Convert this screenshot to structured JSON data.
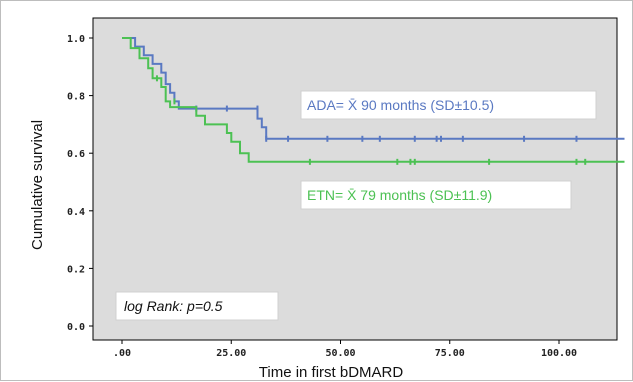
{
  "chart_data": {
    "type": "line",
    "subtype": "kaplan-meier",
    "xlabel": "Time in first bDMARD",
    "ylabel": "Cumulative survival",
    "xlim": [
      0,
      115
    ],
    "ylim": [
      0,
      1.0
    ],
    "x_ticks": [
      ".00",
      "25.00",
      "50.00",
      "75.00",
      "100.00"
    ],
    "y_ticks": [
      "0.0",
      "0.2",
      "0.4",
      "0.6",
      "0.8",
      "1.0"
    ],
    "grid": false,
    "background": "#dcdcdc",
    "series": [
      {
        "name": "ADA",
        "color": "#5a79c2",
        "steps": [
          [
            0,
            1.0
          ],
          [
            3,
            1.0
          ],
          [
            3,
            0.97
          ],
          [
            5,
            0.97
          ],
          [
            5,
            0.94
          ],
          [
            7,
            0.94
          ],
          [
            7,
            0.91
          ],
          [
            9,
            0.91
          ],
          [
            9,
            0.88
          ],
          [
            10,
            0.88
          ],
          [
            10,
            0.84
          ],
          [
            11,
            0.84
          ],
          [
            11,
            0.81
          ],
          [
            12,
            0.81
          ],
          [
            12,
            0.78
          ],
          [
            13,
            0.78
          ],
          [
            13,
            0.755
          ],
          [
            31,
            0.755
          ],
          [
            31,
            0.72
          ],
          [
            32,
            0.72
          ],
          [
            32,
            0.69
          ],
          [
            33,
            0.69
          ],
          [
            33,
            0.65
          ],
          [
            115,
            0.65
          ]
        ],
        "censored": [
          [
            17,
            0.755
          ],
          [
            24,
            0.755
          ],
          [
            31,
            0.755
          ],
          [
            33,
            0.65
          ],
          [
            38,
            0.65
          ],
          [
            47,
            0.65
          ],
          [
            55,
            0.65
          ],
          [
            59,
            0.65
          ],
          [
            67,
            0.65
          ],
          [
            72,
            0.65
          ],
          [
            73,
            0.65
          ],
          [
            78,
            0.65
          ],
          [
            92,
            0.65
          ],
          [
            104,
            0.65
          ]
        ]
      },
      {
        "name": "ETN",
        "color": "#4cc153",
        "steps": [
          [
            0,
            1.0
          ],
          [
            2,
            1.0
          ],
          [
            2,
            0.965
          ],
          [
            4,
            0.965
          ],
          [
            4,
            0.93
          ],
          [
            6,
            0.93
          ],
          [
            6,
            0.895
          ],
          [
            7,
            0.895
          ],
          [
            7,
            0.86
          ],
          [
            9,
            0.86
          ],
          [
            9,
            0.83
          ],
          [
            10,
            0.83
          ],
          [
            10,
            0.78
          ],
          [
            11,
            0.78
          ],
          [
            11,
            0.76
          ],
          [
            17,
            0.76
          ],
          [
            17,
            0.73
          ],
          [
            19,
            0.73
          ],
          [
            19,
            0.7
          ],
          [
            24,
            0.7
          ],
          [
            24,
            0.67
          ],
          [
            25,
            0.67
          ],
          [
            25,
            0.64
          ],
          [
            27,
            0.64
          ],
          [
            27,
            0.6
          ],
          [
            29,
            0.6
          ],
          [
            29,
            0.57
          ],
          [
            115,
            0.57
          ]
        ],
        "censored": [
          [
            8,
            0.86
          ],
          [
            12,
            0.78
          ],
          [
            43,
            0.57
          ],
          [
            63,
            0.57
          ],
          [
            66,
            0.57
          ],
          [
            67,
            0.57
          ],
          [
            84,
            0.57
          ],
          [
            104,
            0.57
          ],
          [
            106,
            0.57
          ]
        ]
      }
    ],
    "annotations": {
      "ada": "ADA= X̄ 90 months (SD±10.5)",
      "etn": "ETN= X̄ 79 months (SD±11.9)",
      "logrank": "log Rank: p=0.5"
    }
  }
}
